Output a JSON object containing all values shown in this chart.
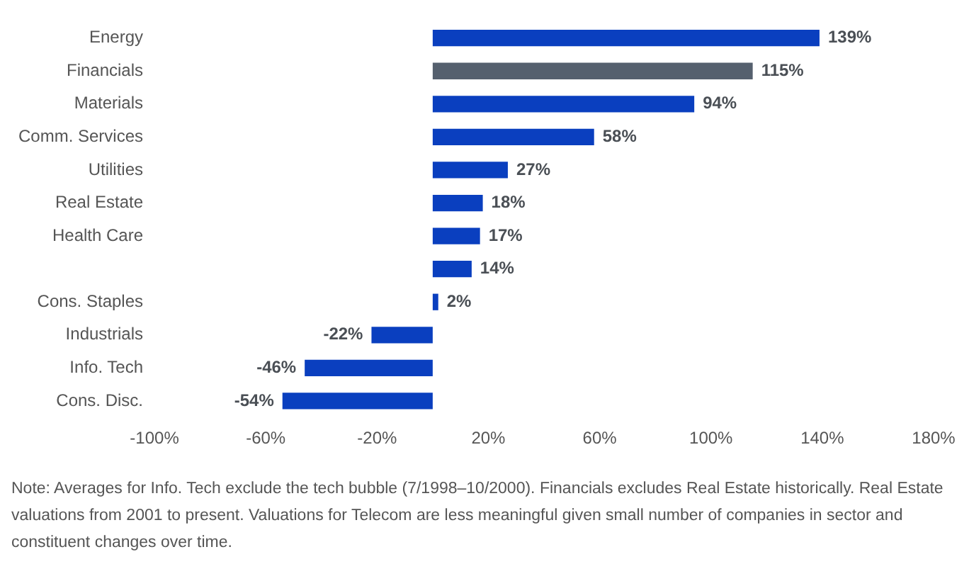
{
  "chart_data": {
    "type": "bar",
    "orientation": "horizontal",
    "categories": [
      "Energy",
      "Financials",
      "Materials",
      "Comm. Services",
      "Utilities",
      "Real Estate",
      "Health Care",
      null,
      "Cons. Staples",
      "Industrials",
      "Info. Tech",
      "Cons. Disc."
    ],
    "values": [
      139,
      115,
      94,
      58,
      27,
      18,
      17,
      14,
      2,
      -22,
      -46,
      -54
    ],
    "colors": [
      "#0a3fbf",
      "#55606e",
      "#0a3fbf",
      "#0a3fbf",
      "#0a3fbf",
      "#0a3fbf",
      "#0a3fbf",
      "#0a3fbf",
      "#0a3fbf",
      "#0a3fbf",
      "#0a3fbf",
      "#0a3fbf"
    ],
    "value_labels": [
      "139%",
      "115%",
      "94%",
      "58%",
      "27%",
      "18%",
      "17%",
      "14%",
      "2%",
      "-22%",
      "-46%",
      "-54%"
    ],
    "xlim": [
      -100,
      180
    ],
    "xticks": [
      {
        "value": -100,
        "label": "-100%"
      },
      {
        "value": -60,
        "label": "-60%"
      },
      {
        "value": -20,
        "label": "-20%"
      },
      {
        "value": 20,
        "label": "20%"
      },
      {
        "value": 60,
        "label": "60%"
      },
      {
        "value": 100,
        "label": "100%"
      },
      {
        "value": 140,
        "label": "140%"
      },
      {
        "value": 180,
        "label": "180%"
      }
    ],
    "grid": false,
    "legend": false,
    "annotations": [
      "Note: Averages for Info. Tech exclude the tech bubble (7/1998–10/2000). Financials excludes Real Estate historically. Real Estate valuations from 2001 to present. Valuations for Telecom are less meaningful given small number of companies in sector and constituent changes over time."
    ]
  }
}
